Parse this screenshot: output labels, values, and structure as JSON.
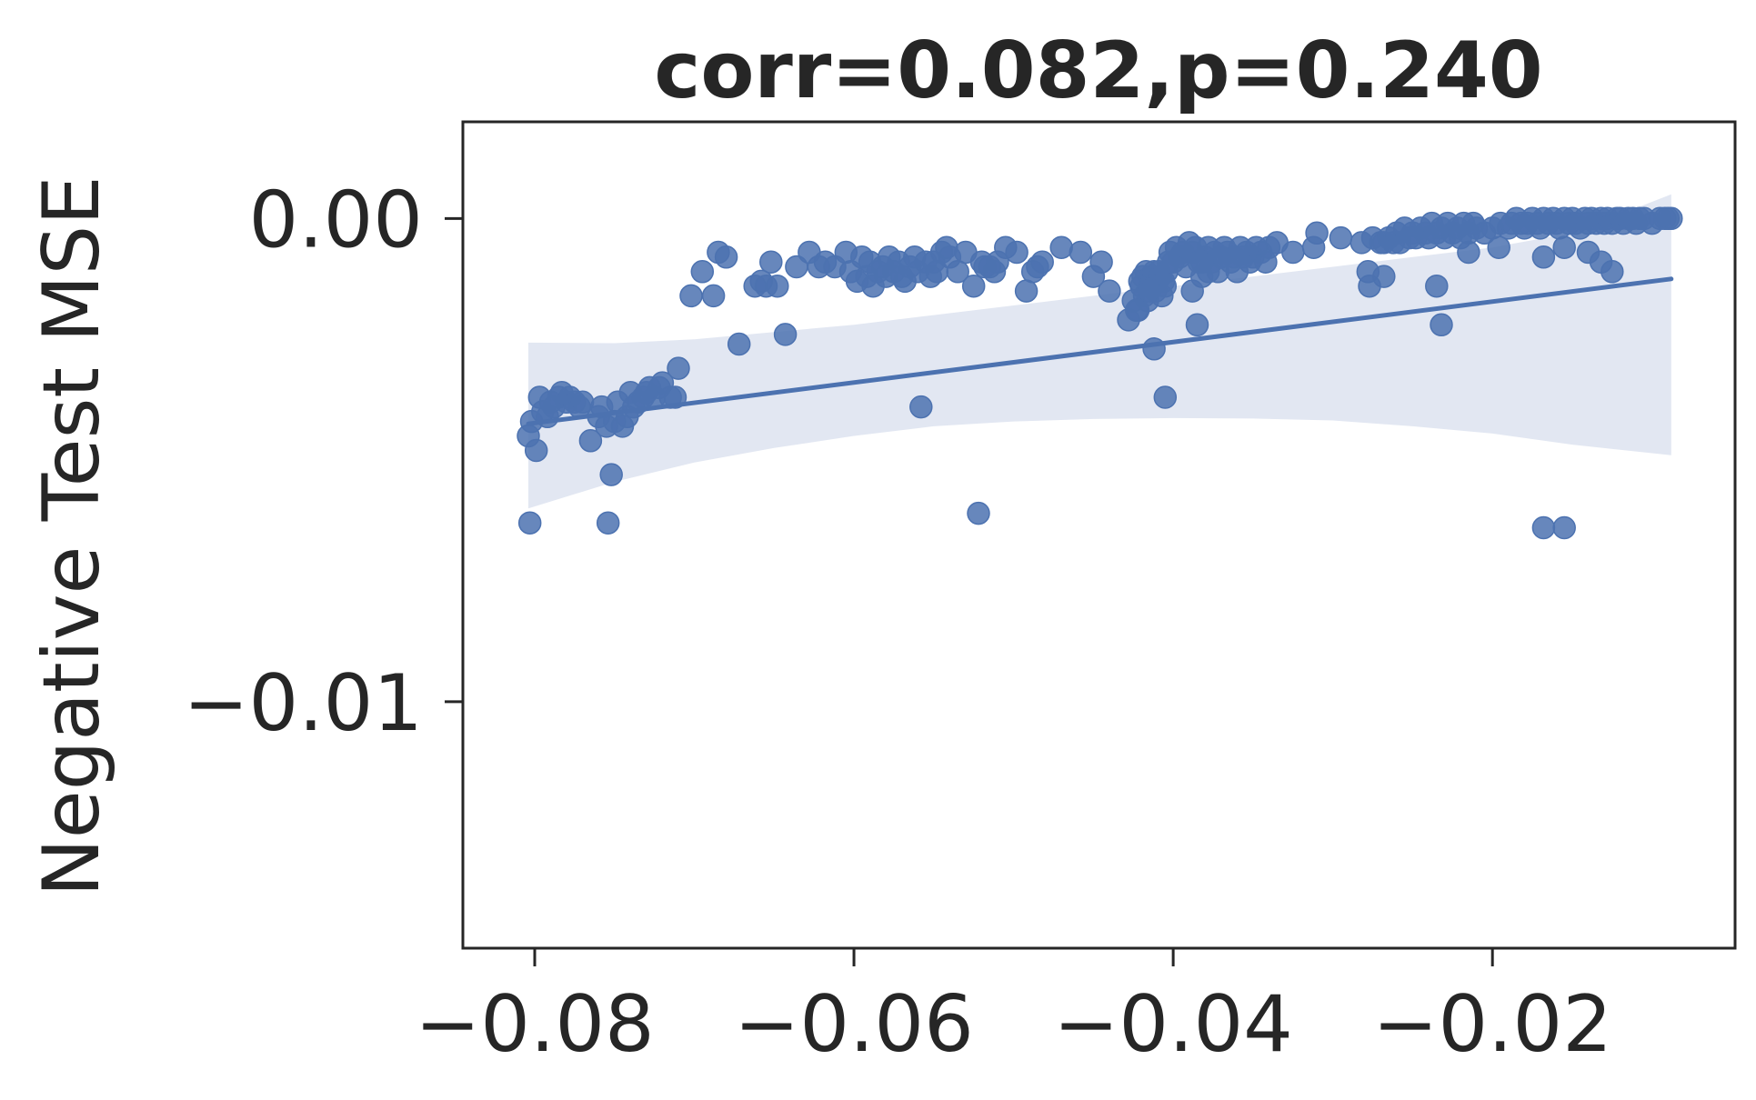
{
  "chart_data": {
    "type": "scatter",
    "title": "corr=0.082,p=0.240",
    "xlabel": "",
    "ylabel": "Negative Test MSE",
    "xlim": [
      -0.0845,
      -0.0048
    ],
    "ylim": [
      -0.0151,
      0.002
    ],
    "x_ticks": [
      -0.08,
      -0.06,
      -0.04,
      -0.02
    ],
    "x_tick_labels": [
      "−0.08",
      "−0.06",
      "−0.04",
      "−0.02"
    ],
    "y_ticks": [
      0.0,
      -0.01
    ],
    "y_tick_labels": [
      "0.00",
      "−0.01"
    ],
    "grid": false,
    "colors": {
      "points": "#4c72b0",
      "line": "#4c72b0",
      "band": "#dde3f0",
      "text": "#262626",
      "frame": "#262626"
    },
    "regression": {
      "x": [
        -0.0804,
        -0.0088
      ],
      "y": [
        -0.00425,
        -0.00125
      ]
    },
    "confidence_band": {
      "x": [
        -0.0804,
        -0.075,
        -0.07,
        -0.065,
        -0.06,
        -0.055,
        -0.05,
        -0.045,
        -0.04,
        -0.035,
        -0.03,
        -0.025,
        -0.02,
        -0.015,
        -0.0088
      ],
      "upper": [
        -0.00257,
        -0.00258,
        -0.0025,
        -0.00235,
        -0.0022,
        -0.002,
        -0.0018,
        -0.0016,
        -0.0014,
        -0.0012,
        -0.001,
        -0.0008,
        -0.0006,
        -0.0003,
        0.0005
      ],
      "lower": [
        -0.006,
        -0.00545,
        -0.00505,
        -0.00475,
        -0.0045,
        -0.0043,
        -0.0042,
        -0.00415,
        -0.00413,
        -0.00414,
        -0.00418,
        -0.0043,
        -0.00445,
        -0.00468,
        -0.0049
      ]
    },
    "points": {
      "x": [
        -0.0804,
        -0.0802,
        -0.0799,
        -0.0797,
        -0.0795,
        -0.0792,
        -0.079,
        -0.0788,
        -0.0785,
        -0.0783,
        -0.078,
        -0.0778,
        -0.0775,
        -0.0772,
        -0.077,
        -0.0765,
        -0.076,
        -0.0758,
        -0.0755,
        -0.0752,
        -0.075,
        -0.0748,
        -0.0745,
        -0.0742,
        -0.074,
        -0.0738,
        -0.0735,
        -0.0732,
        -0.073,
        -0.0728,
        -0.0725,
        -0.0722,
        -0.072,
        -0.0715,
        -0.0712,
        -0.071,
        -0.0702,
        -0.0695,
        -0.0688,
        -0.0685,
        -0.068,
        -0.0672,
        -0.0662,
        -0.0658,
        -0.0655,
        -0.0652,
        -0.0648,
        -0.0643,
        -0.0636,
        -0.0628,
        -0.0622,
        -0.0618,
        -0.0612,
        -0.0605,
        -0.0602,
        -0.0598,
        -0.0595,
        -0.0592,
        -0.059,
        -0.0588,
        -0.0585,
        -0.0582,
        -0.058,
        -0.0578,
        -0.0575,
        -0.0572,
        -0.057,
        -0.0568,
        -0.0565,
        -0.0562,
        -0.056,
        -0.0558,
        -0.0555,
        -0.0552,
        -0.055,
        -0.0548,
        -0.0545,
        -0.0542,
        -0.054,
        -0.0535,
        -0.053,
        -0.0525,
        -0.052,
        -0.0518,
        -0.0515,
        -0.0512,
        -0.051,
        -0.0505,
        -0.0498,
        -0.0492,
        -0.0488,
        -0.0485,
        -0.0482,
        -0.047,
        -0.0458,
        -0.045,
        -0.0445,
        -0.044,
        -0.0428,
        -0.0425,
        -0.0423,
        -0.0421,
        -0.042,
        -0.0419,
        -0.0418,
        -0.0417,
        -0.0416,
        -0.0415,
        -0.0414,
        -0.0413,
        -0.0412,
        -0.0411,
        -0.041,
        -0.0409,
        -0.0408,
        -0.0407,
        -0.0406,
        -0.0405,
        -0.0404,
        -0.0403,
        -0.0402,
        -0.04,
        -0.0398,
        -0.0396,
        -0.0394,
        -0.0392,
        -0.039,
        -0.0388,
        -0.0386,
        -0.0384,
        -0.0382,
        -0.038,
        -0.0378,
        -0.0376,
        -0.0374,
        -0.0372,
        -0.037,
        -0.0368,
        -0.0366,
        -0.0364,
        -0.0362,
        -0.036,
        -0.0358,
        -0.0356,
        -0.0354,
        -0.0352,
        -0.035,
        -0.0348,
        -0.0345,
        -0.0342,
        -0.034,
        -0.0335,
        -0.0325,
        -0.0312,
        -0.031,
        -0.0295,
        -0.0282,
        -0.0275,
        -0.027,
        -0.0268,
        -0.0265,
        -0.0262,
        -0.026,
        -0.0258,
        -0.0255,
        -0.0252,
        -0.025,
        -0.0248,
        -0.0245,
        -0.0242,
        -0.024,
        -0.0238,
        -0.0235,
        -0.0232,
        -0.023,
        -0.0228,
        -0.0225,
        -0.0222,
        -0.022,
        -0.0218,
        -0.0215,
        -0.0212,
        -0.021,
        -0.0205,
        -0.02,
        -0.0195,
        -0.019,
        -0.0188,
        -0.0185,
        -0.0182,
        -0.018,
        -0.0178,
        -0.0175,
        -0.0172,
        -0.017,
        -0.0168,
        -0.0165,
        -0.0162,
        -0.016,
        -0.0158,
        -0.0155,
        -0.0152,
        -0.015,
        -0.0148,
        -0.0145,
        -0.0142,
        -0.014,
        -0.0138,
        -0.0135,
        -0.0132,
        -0.013,
        -0.0128,
        -0.0125,
        -0.0122,
        -0.012,
        -0.0118,
        -0.0115,
        -0.0112,
        -0.011,
        -0.0108,
        -0.0105,
        -0.01,
        -0.0095,
        -0.0092,
        -0.009,
        -0.0088,
        -0.0277,
        -0.0278,
        -0.0268,
        -0.0232,
        -0.0215,
        -0.0196,
        -0.0168,
        -0.0155,
        -0.014,
        -0.0132,
        -0.0125,
        -0.0235,
        -0.0155,
        -0.0422,
        -0.0412,
        -0.0405,
        -0.0415,
        -0.0385,
        -0.0378,
        -0.0388,
        -0.0382
      ],
      "y": [
        -0.0045,
        -0.0042,
        -0.0048,
        -0.0037,
        -0.004,
        -0.0041,
        -0.0038,
        -0.0039,
        -0.0037,
        -0.0036,
        -0.0038,
        -0.0037,
        -0.0038,
        -0.0039,
        -0.0038,
        -0.0046,
        -0.0041,
        -0.0039,
        -0.0043,
        -0.0053,
        -0.0042,
        -0.0038,
        -0.0043,
        -0.0041,
        -0.0036,
        -0.0039,
        -0.0038,
        -0.0037,
        -0.0036,
        -0.0035,
        -0.0037,
        -0.0035,
        -0.0034,
        -0.0037,
        -0.0037,
        -0.0031,
        -0.0016,
        -0.0011,
        -0.0016,
        -0.0007,
        -0.0008,
        -0.0026,
        -0.0014,
        -0.0013,
        -0.0014,
        -0.0009,
        -0.0014,
        -0.0024,
        -0.001,
        -0.0007,
        -0.001,
        -0.0009,
        -0.001,
        -0.0007,
        -0.0011,
        -0.0013,
        -0.0008,
        -0.0012,
        -0.0009,
        -0.0014,
        -0.0011,
        -0.001,
        -0.0012,
        -0.0008,
        -0.0011,
        -0.0009,
        -0.0012,
        -0.0013,
        -0.001,
        -0.0008,
        -0.0011,
        -0.0039,
        -0.0009,
        -0.0012,
        -0.0009,
        -0.0011,
        -0.0007,
        -0.0006,
        -0.0008,
        -0.0011,
        -0.0007,
        -0.0014,
        -0.0009,
        -0.001,
        -0.001,
        -0.0011,
        -0.0009,
        -0.0006,
        -0.0007,
        -0.0015,
        -0.0011,
        -0.001,
        -0.0009,
        -0.0006,
        -0.0007,
        -0.0012,
        -0.0009,
        -0.0015,
        -0.0021,
        -0.0017,
        -0.0019,
        -0.0013,
        -0.0014,
        -0.0012,
        -0.0016,
        -0.0011,
        -0.0017,
        -0.0014,
        -0.0012,
        -0.0013,
        -0.0011,
        -0.0015,
        -0.0013,
        -0.0011,
        -0.0012,
        -0.0016,
        -0.0013,
        -0.0014,
        -0.0011,
        -0.0009,
        -0.0007,
        -0.0009,
        -0.0006,
        -0.0008,
        -0.0007,
        -0.001,
        -0.0005,
        -0.0007,
        -0.0006,
        -0.0009,
        -0.0012,
        -0.0008,
        -0.0006,
        -0.0009,
        -0.0007,
        -0.0011,
        -0.0008,
        -0.0006,
        -0.0007,
        -0.0009,
        -0.0008,
        -0.0011,
        -0.0006,
        -0.0008,
        -0.0007,
        -0.0009,
        -0.0008,
        -0.0006,
        -0.0007,
        -0.0009,
        -0.0006,
        -0.0005,
        -0.0007,
        -0.0006,
        -0.0003,
        -0.0004,
        -0.0005,
        -0.0004,
        -0.0005,
        -0.0005,
        -0.0004,
        -0.0005,
        -0.0003,
        -0.0005,
        -0.0002,
        -0.0004,
        -0.0003,
        -0.0004,
        -0.0002,
        -0.0003,
        -0.0004,
        -0.0001,
        -0.0003,
        -0.0002,
        -0.0004,
        -0.0001,
        -0.0003,
        -0.0002,
        -0.0004,
        -0.0001,
        -0.0003,
        -0.0001,
        -0.0002,
        -0.0003,
        -0.0002,
        -0.0001,
        -0.0002,
        -0.0001,
        0.0,
        -0.0001,
        -0.0002,
        -0.0001,
        0.0,
        -0.0001,
        -0.0002,
        0.0,
        -0.0001,
        0.0,
        -0.0001,
        -0.0002,
        0.0,
        -0.0001,
        0.0,
        -0.0001,
        -0.0002,
        0.0,
        -0.0001,
        0.0,
        -0.0001,
        0.0,
        -0.0001,
        0.0,
        -0.0001,
        0.0,
        0.0,
        -0.0001,
        0.0,
        0.0,
        -0.0001,
        0.0,
        0.0,
        -0.0001,
        0.0,
        0.0,
        0.0,
        0.0,
        -0.0014,
        -0.0011,
        -0.0012,
        -0.0022,
        -0.0007,
        -0.0006,
        -0.0008,
        -0.0006,
        -0.0007,
        -0.0009,
        -0.0011,
        -0.0014,
        -0.0064,
        -0.0019,
        -0.0027,
        -0.0037,
        -0.0015,
        -0.0022,
        -0.0011,
        -0.0015,
        -0.0009
      ]
    },
    "outliers": {
      "x": [
        -0.0803,
        -0.0754,
        -0.0522,
        -0.0168
      ],
      "y": [
        -0.0063,
        -0.0063,
        -0.0061,
        -0.0064
      ]
    }
  }
}
